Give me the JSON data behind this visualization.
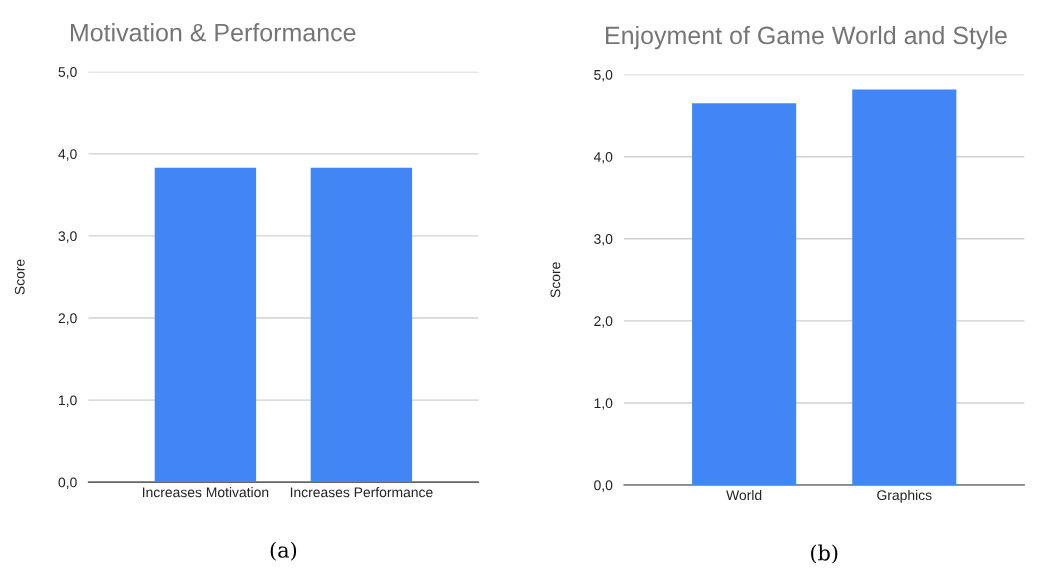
{
  "chart_data": [
    {
      "type": "bar",
      "title": "Motivation & Performance",
      "ylabel": "Score",
      "categories": [
        "Increases Motivation",
        "Increases Performance"
      ],
      "values": [
        3.83,
        3.83
      ],
      "color": "#4285f4",
      "ylim": [
        0,
        5
      ],
      "yticks": [
        {
          "value": 0,
          "label": "0,0"
        },
        {
          "value": 1,
          "label": "1,0"
        },
        {
          "value": 2,
          "label": "2,0"
        },
        {
          "value": 3,
          "label": "3,0"
        },
        {
          "value": 4,
          "label": "4,0"
        },
        {
          "value": 5,
          "label": "5,0"
        }
      ],
      "grid": "y",
      "annotations": [
        "(a)"
      ]
    },
    {
      "type": "bar",
      "title": "Enjoyment of Game World and Style",
      "ylabel": "Score",
      "categories": [
        "World",
        "Graphics"
      ],
      "values": [
        4.65,
        4.82
      ],
      "color": "#4285f4",
      "ylim": [
        0,
        5
      ],
      "yticks": [
        {
          "value": 0,
          "label": "0,0"
        },
        {
          "value": 1,
          "label": "1,0"
        },
        {
          "value": 2,
          "label": "2,0"
        },
        {
          "value": 3,
          "label": "3,0"
        },
        {
          "value": 4,
          "label": "4,0"
        },
        {
          "value": 5,
          "label": "5,0"
        }
      ],
      "grid": "y",
      "annotations": [
        "(b)"
      ]
    }
  ]
}
